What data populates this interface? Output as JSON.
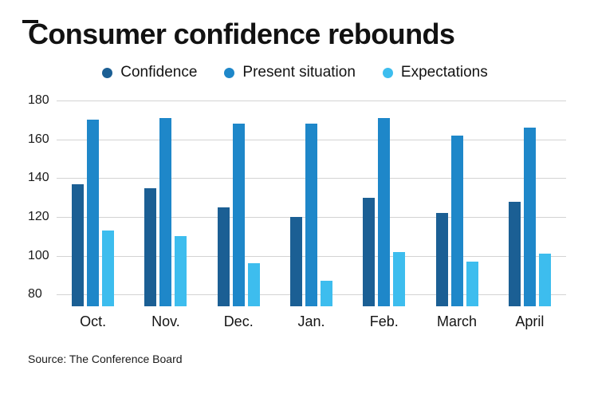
{
  "chart_data": {
    "type": "bar",
    "title": "Consumer confidence rebounds",
    "source_note": "Source: The Conference Board",
    "categories": [
      "Oct.",
      "Nov.",
      "Dec.",
      "Jan.",
      "Feb.",
      "March",
      "April"
    ],
    "series": [
      {
        "name": "Confidence",
        "color": "#1b5f94",
        "values": [
          137,
          135,
          125,
          120,
          130,
          122,
          128
        ]
      },
      {
        "name": "Present situation",
        "color": "#1e87c9",
        "values": [
          170,
          171,
          168,
          168,
          171,
          162,
          166
        ]
      },
      {
        "name": "Expectations",
        "color": "#3dbdee",
        "values": [
          113,
          110,
          96,
          87,
          102,
          97,
          101
        ]
      }
    ],
    "ylim": [
      74,
      180
    ],
    "yticks": [
      80,
      100,
      120,
      140,
      160,
      180
    ],
    "grid": true,
    "legend_position": "top",
    "xlabel": "",
    "ylabel": ""
  }
}
